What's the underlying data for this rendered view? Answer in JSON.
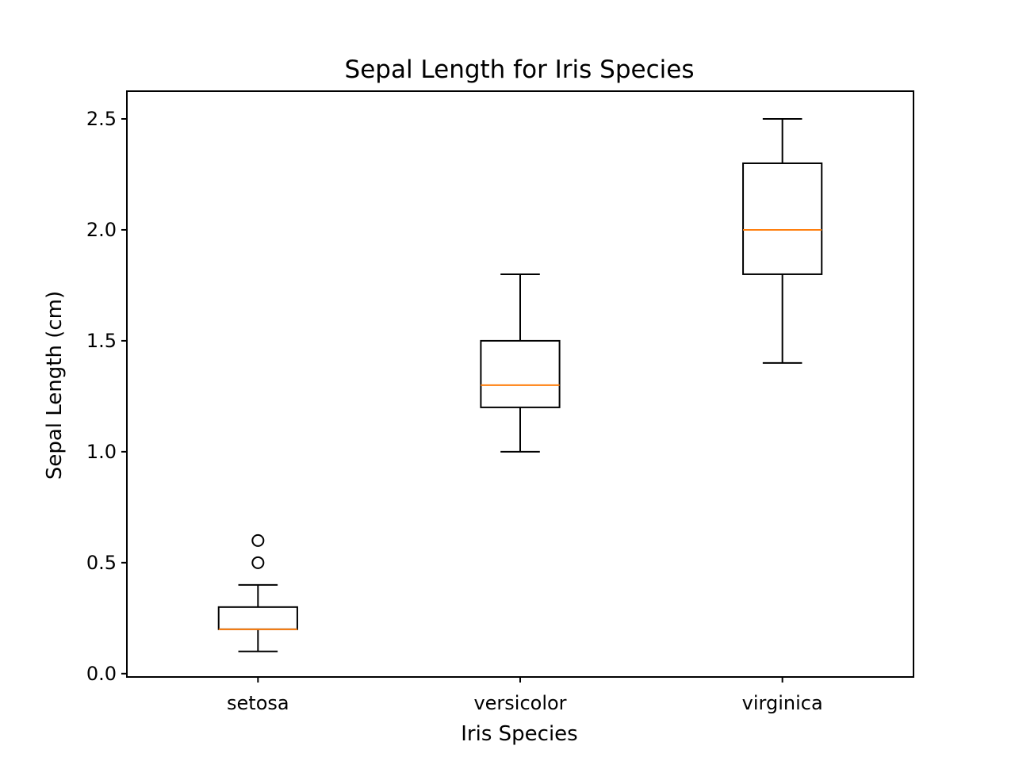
{
  "chart_data": {
    "type": "box",
    "title": "Sepal Length for Iris Species",
    "xlabel": "Iris Species",
    "ylabel": "Sepal Length (cm)",
    "ylim": [
      -0.015,
      2.625
    ],
    "yticks": [
      "0.0",
      "0.5",
      "1.0",
      "1.5",
      "2.0",
      "2.5"
    ],
    "categories": [
      "setosa",
      "versicolor",
      "virginica"
    ],
    "boxes": [
      {
        "category": "setosa",
        "whisker_low": 0.1,
        "q1": 0.2,
        "median": 0.2,
        "q3": 0.3,
        "whisker_high": 0.4,
        "outliers": [
          0.5,
          0.6
        ]
      },
      {
        "category": "versicolor",
        "whisker_low": 1.0,
        "q1": 1.2,
        "median": 1.3,
        "q3": 1.5,
        "whisker_high": 1.8,
        "outliers": []
      },
      {
        "category": "virginica",
        "whisker_low": 1.4,
        "q1": 1.8,
        "median": 2.0,
        "q3": 2.3,
        "whisker_high": 2.5,
        "outliers": []
      }
    ],
    "grid": false,
    "colors": {
      "box": "#000000",
      "median": "#ff7f0e",
      "outlier": "#000000"
    }
  }
}
